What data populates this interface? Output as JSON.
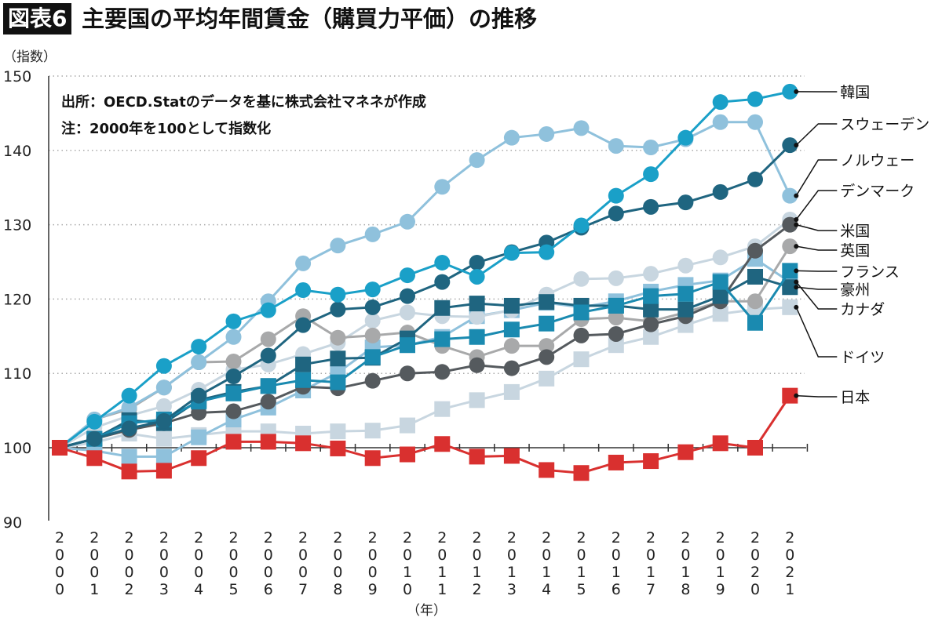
{
  "title_badge": "図表6",
  "title": "主要国の平均年間賃金（購買力平価）の推移",
  "notes": [
    "出所：OECD.Statのデータを基に株式会社マネネが作成",
    "注：2000年を100として指数化"
  ],
  "chart_data": {
    "type": "line",
    "title": "主要国の平均年間賃金（購買力平価）の推移",
    "ylabel": "（指数）",
    "xlabel": "（年）",
    "ylim": [
      90,
      150
    ],
    "y_ticks": [
      90,
      100,
      110,
      120,
      130,
      140,
      150
    ],
    "grid": "horizontal dotted",
    "legend": "right, labels at line ends",
    "x": [
      2000,
      2001,
      2002,
      2003,
      2004,
      2005,
      2006,
      2007,
      2008,
      2009,
      2010,
      2011,
      2012,
      2013,
      2014,
      2015,
      2016,
      2017,
      2018,
      2019,
      2020,
      2021
    ],
    "x_tick_labels": [
      "2000",
      "2001",
      "2002",
      "2003",
      "2004",
      "2005",
      "2006",
      "2007",
      "2008",
      "2009",
      "2010",
      "2011",
      "2012",
      "2013",
      "2014",
      "2015",
      "2016",
      "2017",
      "2018",
      "2019",
      "2020",
      "2021"
    ],
    "series": [
      {
        "name": "ドイツ",
        "marker": "square",
        "color": "#c8d6e0",
        "values": [
          100,
          100.7,
          101.9,
          101.2,
          101.7,
          102.2,
          102.2,
          101.9,
          102.2,
          102.3,
          103.0,
          105.2,
          106.4,
          107.5,
          109.3,
          111.9,
          113.8,
          114.9,
          116.5,
          118.0,
          118.6,
          118.9
        ]
      },
      {
        "name": "カナダ",
        "marker": "square",
        "color": "#8fc1dc",
        "values": [
          100,
          99.6,
          98.8,
          98.8,
          101.4,
          103.8,
          105.4,
          107.7,
          110.1,
          113.5,
          113.8,
          114.9,
          117.7,
          118.5,
          119.5,
          118.9,
          119.7,
          121.0,
          121.9,
          122.5,
          125.4,
          122.3
        ]
      },
      {
        "name": "デンマーク",
        "marker": "circle",
        "color": "#c8d6e0",
        "values": [
          100,
          102.7,
          104.3,
          105.6,
          107.8,
          110.5,
          111.2,
          112.6,
          114.1,
          117.1,
          118.2,
          117.7,
          117.6,
          118.5,
          120.6,
          122.7,
          122.8,
          123.4,
          124.5,
          125.6,
          127.1,
          130.7
        ]
      },
      {
        "name": "英国",
        "marker": "circle",
        "color": "#a8a9aa",
        "values": [
          100,
          103.8,
          105.2,
          108.1,
          111.5,
          111.6,
          114.6,
          117.7,
          114.8,
          115.1,
          115.5,
          113.7,
          112.2,
          113.7,
          113.7,
          117.3,
          117.5,
          117.0,
          118.2,
          119.7,
          119.7,
          127.1
        ]
      },
      {
        "name": "ノルウェー",
        "marker": "circle",
        "color": "#8fc1dc",
        "values": [
          100,
          103.8,
          105.4,
          108.1,
          111.5,
          114.9,
          119.7,
          124.8,
          127.2,
          128.7,
          130.4,
          135.1,
          138.7,
          141.7,
          142.2,
          143.0,
          140.6,
          140.4,
          141.5,
          143.8,
          143.8,
          133.9
        ]
      },
      {
        "name": "米国",
        "marker": "circle",
        "color": "#555a5e",
        "values": [
          100,
          101.2,
          102.4,
          103.3,
          104.7,
          104.9,
          106.2,
          108.2,
          108.0,
          109.0,
          110.0,
          110.2,
          111.1,
          110.7,
          112.2,
          115.1,
          115.3,
          116.6,
          117.7,
          119.7,
          126.5,
          130.0
        ]
      },
      {
        "name": "豪州",
        "marker": "square",
        "color": "#1f6580",
        "values": [
          100,
          101.2,
          103.7,
          103.3,
          106.4,
          107.5,
          108.3,
          111.2,
          112.0,
          112.1,
          114.7,
          118.8,
          119.4,
          119.1,
          119.6,
          119.1,
          119.1,
          118.6,
          118.6,
          120.4,
          123.0,
          121.6
        ]
      },
      {
        "name": "フランス",
        "marker": "square",
        "color": "#1a8ab0",
        "values": [
          100,
          101.2,
          103.3,
          103.8,
          106.2,
          107.3,
          108.3,
          109.1,
          108.8,
          112.2,
          113.8,
          114.6,
          114.9,
          115.9,
          116.7,
          118.2,
          119.1,
          120.4,
          120.7,
          122.3,
          116.8,
          123.8
        ]
      },
      {
        "name": "スウェーデン",
        "marker": "circle",
        "color": "#1f6580",
        "values": [
          100,
          101.2,
          102.6,
          103.6,
          107.0,
          109.6,
          112.4,
          116.5,
          118.6,
          118.9,
          120.4,
          122.3,
          124.9,
          126.3,
          127.6,
          129.6,
          131.5,
          132.4,
          133.0,
          134.4,
          136.1,
          140.7
        ]
      },
      {
        "name": "韓国",
        "marker": "circle",
        "color": "#1aa0c8",
        "values": [
          100,
          103.5,
          107.0,
          111.0,
          113.6,
          117.0,
          118.5,
          121.2,
          120.6,
          121.3,
          123.2,
          124.9,
          123.0,
          126.2,
          126.3,
          129.9,
          133.9,
          136.8,
          141.7,
          146.5,
          146.9,
          147.9
        ]
      },
      {
        "name": "日本",
        "marker": "square",
        "color": "#d9302f",
        "values": [
          100,
          98.6,
          96.8,
          96.9,
          98.6,
          100.8,
          100.8,
          100.6,
          99.9,
          98.6,
          99.1,
          100.5,
          98.8,
          98.9,
          97.0,
          96.6,
          98.0,
          98.2,
          99.4,
          100.6,
          100.0,
          107.0
        ]
      }
    ]
  }
}
